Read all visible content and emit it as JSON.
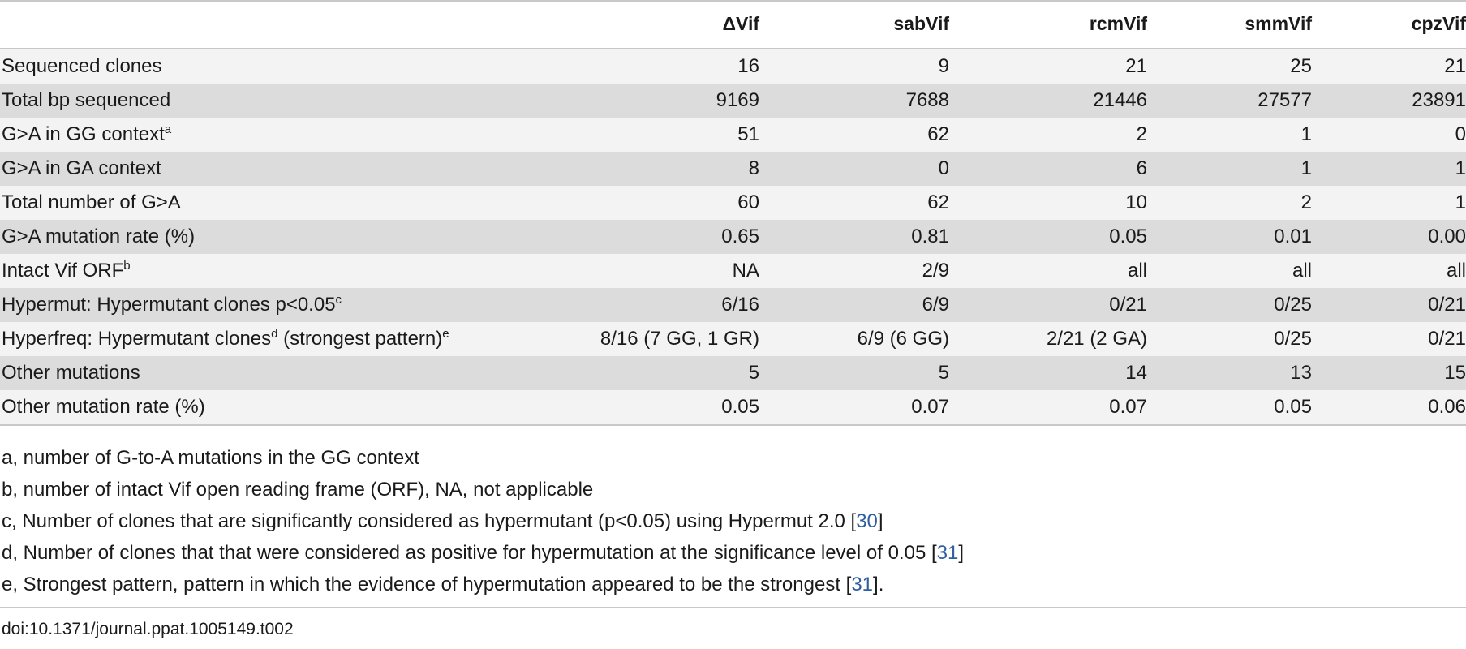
{
  "table": {
    "columns": [
      "",
      "ΔVif",
      "sabVif",
      "rcmVif",
      "smmVif",
      "cpzVif"
    ],
    "rows": [
      {
        "label": "Sequenced clones",
        "sup": "",
        "label_suffix": "",
        "sup2": "",
        "values": [
          "16",
          "9",
          "21",
          "25",
          "21"
        ]
      },
      {
        "label": "Total bp sequenced",
        "sup": "",
        "label_suffix": "",
        "sup2": "",
        "values": [
          "9169",
          "7688",
          "21446",
          "27577",
          "23891"
        ]
      },
      {
        "label": "G>A in GG context",
        "sup": "a",
        "label_suffix": "",
        "sup2": "",
        "values": [
          "51",
          "62",
          "2",
          "1",
          "0"
        ]
      },
      {
        "label": "G>A in GA context",
        "sup": "",
        "label_suffix": "",
        "sup2": "",
        "values": [
          "8",
          "0",
          "6",
          "1",
          "1"
        ]
      },
      {
        "label": "Total number of G>A",
        "sup": "",
        "label_suffix": "",
        "sup2": "",
        "values": [
          "60",
          "62",
          "10",
          "2",
          "1"
        ]
      },
      {
        "label": "G>A mutation rate (%)",
        "sup": "",
        "label_suffix": "",
        "sup2": "",
        "values": [
          "0.65",
          "0.81",
          "0.05",
          "0.01",
          "0.00"
        ]
      },
      {
        "label": "Intact Vif ORF",
        "sup": "b",
        "label_suffix": "",
        "sup2": "",
        "values": [
          "NA",
          "2/9",
          "all",
          "all",
          "all"
        ]
      },
      {
        "label": "Hypermut: Hypermutant clones p<0.05",
        "sup": "c",
        "label_suffix": "",
        "sup2": "",
        "values": [
          "6/16",
          "6/9",
          "0/21",
          "0/25",
          "0/21"
        ]
      },
      {
        "label": "Hyperfreq: Hypermutant clones",
        "sup": "d",
        "label_suffix": " (strongest pattern)",
        "sup2": "e",
        "values": [
          "8/16 (7 GG, 1 GR)",
          "6/9 (6 GG)",
          "2/21 (2 GA)",
          "0/25",
          "0/21"
        ]
      },
      {
        "label": "Other mutations",
        "sup": "",
        "label_suffix": "",
        "sup2": "",
        "values": [
          "5",
          "5",
          "14",
          "13",
          "15"
        ]
      },
      {
        "label": "Other mutation rate (%)",
        "sup": "",
        "label_suffix": "",
        "sup2": "",
        "values": [
          "0.05",
          "0.07",
          "0.07",
          "0.05",
          "0.06"
        ]
      }
    ]
  },
  "footnotes": [
    {
      "text": "a, number of G-to-A mutations in the GG context",
      "ref": "",
      "after": ""
    },
    {
      "text": "b, number of intact Vif open reading frame (ORF), NA, not applicable",
      "ref": "",
      "after": ""
    },
    {
      "text": "c, Number of clones that are significantly considered as hypermutant (p<0.05) using Hypermut 2.0 [",
      "ref": "30",
      "after": "]"
    },
    {
      "text": "d, Number of clones that that were considered as positive for hypermutation at the significance level of 0.05 [",
      "ref": "31",
      "after": "]"
    },
    {
      "text": "e, Strongest pattern, pattern in which the evidence of hypermutation appeared to be the strongest [",
      "ref": "31",
      "after": "]."
    }
  ],
  "doi": "doi:10.1371/journal.ppat.1005149.t002"
}
